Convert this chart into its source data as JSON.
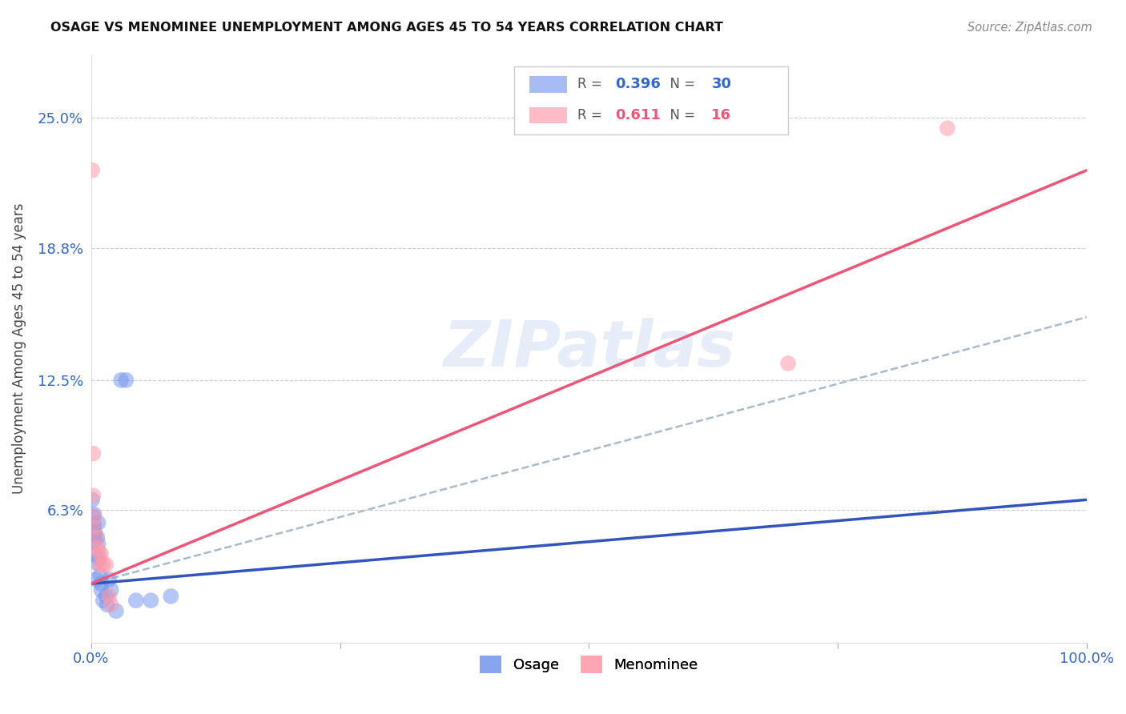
{
  "title": "OSAGE VS MENOMINEE UNEMPLOYMENT AMONG AGES 45 TO 54 YEARS CORRELATION CHART",
  "source": "Source: ZipAtlas.com",
  "ylabel": "Unemployment Among Ages 45 to 54 years",
  "watermark": "ZIPatlas",
  "xlim": [
    0,
    1.0
  ],
  "ylim": [
    0,
    0.28
  ],
  "xticks": [
    0.0,
    0.25,
    0.5,
    0.75,
    1.0
  ],
  "xtick_labels": [
    "0.0%",
    "",
    "",
    "",
    "100.0%"
  ],
  "ytick_labels": [
    "",
    "6.3%",
    "12.5%",
    "18.8%",
    "25.0%"
  ],
  "yticks": [
    0.0,
    0.063,
    0.125,
    0.188,
    0.25
  ],
  "osage_color": "#7799ee",
  "menominee_color": "#ff99aa",
  "osage_line_color": "#3355bb",
  "menominee_line_color": "#ee5577",
  "dashed_line_color": "#aabbcc",
  "legend_R_osage": "0.396",
  "legend_N_osage": "30",
  "legend_R_menominee": "0.611",
  "legend_N_menominee": "16",
  "osage_line": {
    "x0": 0.0,
    "y0": 0.028,
    "x1": 1.0,
    "y1": 0.068
  },
  "menominee_line": {
    "x0": 0.0,
    "y0": 0.028,
    "x1": 1.0,
    "y1": 0.225
  },
  "dashed_line": {
    "x0": 0.0,
    "y0": 0.028,
    "x1": 1.0,
    "y1": 0.155
  },
  "osage_points": [
    [
      0.001,
      0.055
    ],
    [
      0.001,
      0.068
    ],
    [
      0.002,
      0.06
    ],
    [
      0.002,
      0.055
    ],
    [
      0.002,
      0.048
    ],
    [
      0.003,
      0.056
    ],
    [
      0.003,
      0.061
    ],
    [
      0.003,
      0.05
    ],
    [
      0.004,
      0.052
    ],
    [
      0.004,
      0.042
    ],
    [
      0.005,
      0.038
    ],
    [
      0.005,
      0.03
    ],
    [
      0.006,
      0.05
    ],
    [
      0.007,
      0.057
    ],
    [
      0.007,
      0.047
    ],
    [
      0.008,
      0.04
    ],
    [
      0.009,
      0.032
    ],
    [
      0.01,
      0.028
    ],
    [
      0.01,
      0.025
    ],
    [
      0.012,
      0.02
    ],
    [
      0.015,
      0.022
    ],
    [
      0.016,
      0.018
    ],
    [
      0.018,
      0.03
    ],
    [
      0.02,
      0.025
    ],
    [
      0.025,
      0.015
    ],
    [
      0.03,
      0.125
    ],
    [
      0.035,
      0.125
    ],
    [
      0.045,
      0.02
    ],
    [
      0.06,
      0.02
    ],
    [
      0.08,
      0.022
    ]
  ],
  "menominee_points": [
    [
      0.001,
      0.225
    ],
    [
      0.002,
      0.09
    ],
    [
      0.002,
      0.07
    ],
    [
      0.003,
      0.06
    ],
    [
      0.003,
      0.055
    ],
    [
      0.005,
      0.05
    ],
    [
      0.006,
      0.045
    ],
    [
      0.008,
      0.043
    ],
    [
      0.009,
      0.037
    ],
    [
      0.01,
      0.042
    ],
    [
      0.012,
      0.037
    ],
    [
      0.015,
      0.037
    ],
    [
      0.018,
      0.022
    ],
    [
      0.02,
      0.018
    ],
    [
      0.7,
      0.133
    ],
    [
      0.86,
      0.245
    ]
  ]
}
